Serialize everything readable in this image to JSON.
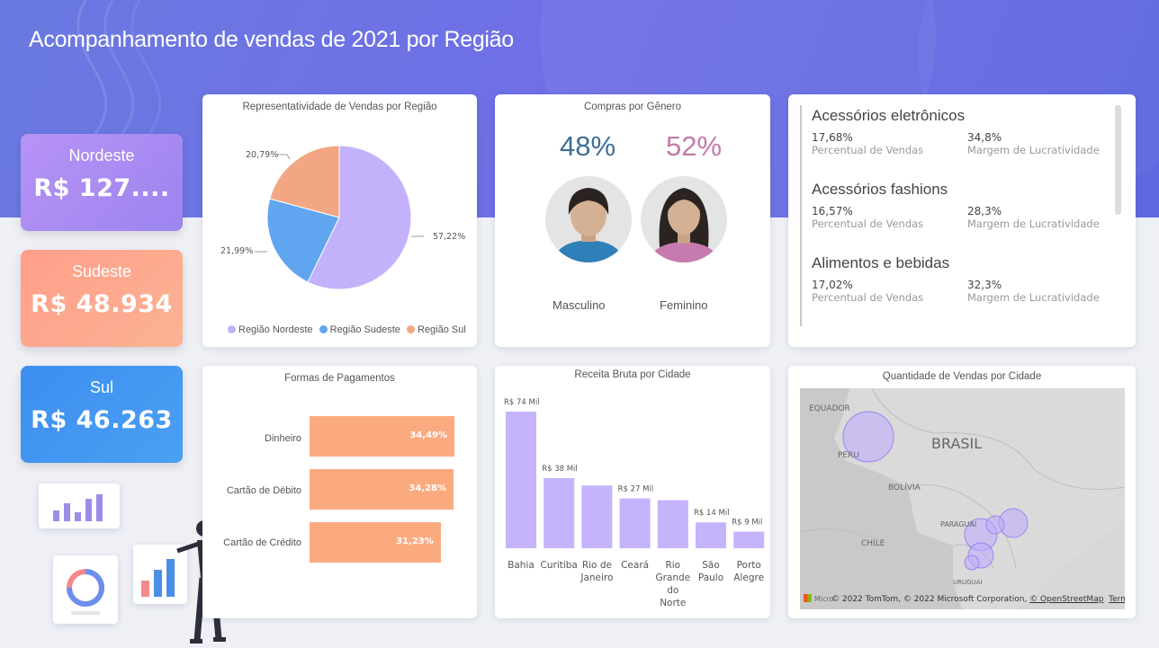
{
  "header": {
    "title": "Acompanhamento de vendas de 2021 por Região"
  },
  "kpis": [
    {
      "label": "Nordeste",
      "value": "R$ 127...."
    },
    {
      "label": "Sudeste",
      "value": "R$ 48.934"
    },
    {
      "label": "Sul",
      "value": "R$ 46.263"
    }
  ],
  "pie": {
    "title": "Representatividade de Vendas por Região",
    "labels": [
      "57,22%",
      "21,99%",
      "20,79%"
    ],
    "legend": [
      "Região Nordeste",
      "Região Sudeste",
      "Região Sul"
    ]
  },
  "gender": {
    "title": "Compras por Gênero",
    "male": {
      "percent": "48%",
      "label": "Masculino"
    },
    "female": {
      "percent": "52%",
      "label": "Feminino"
    }
  },
  "categories": [
    {
      "name": "Acessórios eletrônicos",
      "sales_pct": "17,68%",
      "sales_label": "Percentual de Vendas",
      "margin": "34,8%",
      "margin_label": "Margem de Lucratividade"
    },
    {
      "name": "Acessórios fashions",
      "sales_pct": "16,57%",
      "sales_label": "Percentual de Vendas",
      "margin": "28,3%",
      "margin_label": "Margem de Lucratividade"
    },
    {
      "name": "Alimentos e bebidas",
      "sales_pct": "17,02%",
      "sales_label": "Percentual de Vendas",
      "margin": "32,3%",
      "margin_label": "Margem de Lucratividade"
    }
  ],
  "payments": {
    "title": "Formas de Pagamentos",
    "items": [
      {
        "label": "Dinheiro",
        "value": "34,49%"
      },
      {
        "label": "Cartão de Débito",
        "value": "34,28%"
      },
      {
        "label": "Cartão de Crédito",
        "value": "31,23%"
      }
    ]
  },
  "revenue": {
    "title": "Receita Bruta por Cidade",
    "value_labels": [
      "R$ 74 Mil",
      "R$ 38 Mil",
      "R$ 27 Mil",
      "R$ 14 Mil",
      "R$ 9 Mil"
    ]
  },
  "map": {
    "title": "Quantidade de Vendas por Cidade",
    "labels": [
      "EQUADOR",
      "PERU",
      "BRASIL",
      "BOLÍVIA",
      "PARAGUAI",
      "CHILE",
      "URUGUAI"
    ],
    "credit_logo": "Micro",
    "credit": "© 2022 TomTom, © 2022 Microsoft Corporation,",
    "credit_osm": "© OpenStreetMap",
    "credit_terms": "Terms"
  },
  "colors": {
    "nordeste": "#c3b1fc",
    "sudeste": "#60a5f0",
    "sul": "#f3a684",
    "male": "#3c6e97",
    "female": "#c17aa8",
    "bars": "#c5b3fb",
    "payment_bars": "#fbaa80"
  },
  "chart_data": [
    {
      "type": "pie",
      "title": "Representatividade de Vendas por Região",
      "categories": [
        "Região Nordeste",
        "Região Sudeste",
        "Região Sul"
      ],
      "values": [
        57.22,
        21.99,
        20.79
      ],
      "legend": "bottom"
    },
    {
      "type": "bar",
      "title": "Formas de Pagamentos",
      "categories": [
        "Dinheiro",
        "Cartão de Débito",
        "Cartão de Crédito"
      ],
      "values": [
        34.49,
        34.28,
        31.23
      ],
      "orientation": "horizontal"
    },
    {
      "type": "bar",
      "title": "Receita Bruta por Cidade",
      "categories": [
        "Bahia",
        "Curitiba",
        "Rio de Janeiro",
        "Ceará",
        "Rio Grande do Norte",
        "São Paulo",
        "Porto Alegre"
      ],
      "values": [
        74,
        38,
        34,
        27,
        26,
        14,
        9
      ],
      "ylim": [
        0,
        80
      ]
    }
  ]
}
